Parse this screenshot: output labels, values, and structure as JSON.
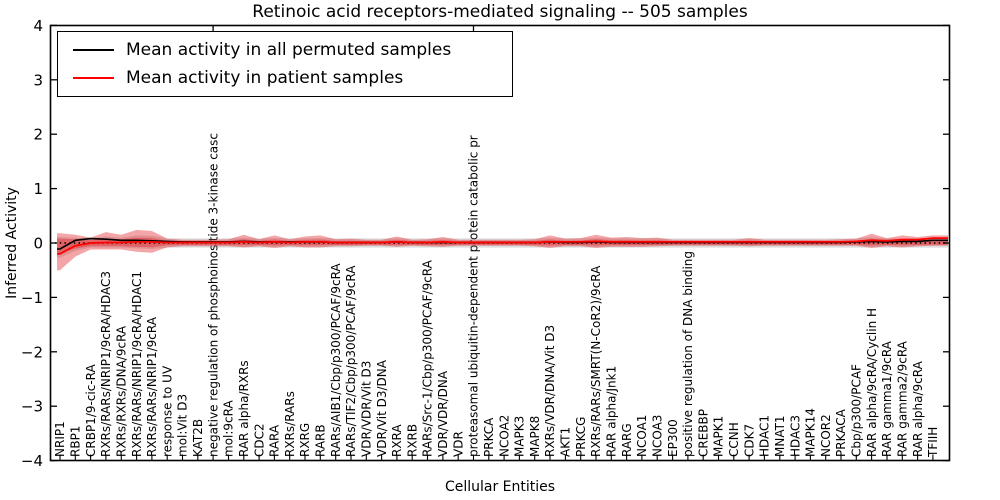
{
  "title": "Retinoic acid receptors-mediated signaling -- 505 samples",
  "legend": {
    "entries": [
      {
        "label": "Mean activity in all permuted samples",
        "color": "#000000"
      },
      {
        "label": "Mean activity in patient samples",
        "color": "#ff0000"
      }
    ],
    "position": "upper left"
  },
  "chart_data": {
    "type": "line",
    "title": "Retinoic acid receptors-mediated signaling -- 505 samples",
    "xlabel": "Cellular Entities",
    "ylabel": "Inferred Activity",
    "ylim": [
      -4,
      4
    ],
    "ytick_labels": [
      "4",
      "3",
      "2",
      "1",
      "0",
      "−1",
      "−2",
      "−3",
      "−4"
    ],
    "ytick_values": [
      4,
      3,
      2,
      1,
      0,
      -1,
      -2,
      -3,
      -4
    ],
    "grid": false,
    "x_tick_label_rotation": 90,
    "baseline": {
      "value": 0,
      "style": "dotted",
      "color": "#000000"
    },
    "band_color": "#e31e24",
    "shadow_band_color": "#828282",
    "layout_hints": {
      "top_tick_indices": [
        10,
        27
      ]
    },
    "categories": [
      "NRIP1",
      "RBP1",
      "CRBP1/9-cic-RA",
      "RXRs/RARs/NRIP1/9cRA/HDAC3",
      "RXRs/RXRs/DNA/9cRA",
      "RXRs/RARs/NRIP1/9cRA/HDAC1",
      "RXRs/RARs/NRIP1/9cRA",
      "response to UV",
      "mol:Vit D3",
      "KAT2B",
      "negative regulation of phosphoinositide 3-kinase casc",
      "mol:9cRA",
      "RAR alpha/RXRs",
      "CDC2",
      "RARA",
      "RXRs/RARs",
      "RXRG",
      "RARB",
      "RARs/AIB1/Cbp/p300/PCAF/9cRA",
      "RARs/TIF2/Cbp/p300/PCAF/9cRA",
      "VDR/VDR/Vit D3",
      "VDR/Vit D3/DNA",
      "RXRA",
      "RXRB",
      "RARs/Src-1/Cbp/p300/PCAF/9cRA",
      "VDR/VDR/DNA",
      "VDR",
      "proteasomal ubiquitin-dependent protein catabolic pr",
      "PRKCA",
      "NCOA2",
      "MAPK3",
      "MAPK8",
      "RXRs/VDR/DNA/Vit D3",
      "AKT1",
      "PRKCG",
      "RXRs/RARs/SMRT(N-CoR2)/9cRA",
      "RAR alpha/Jnk1",
      "RARG",
      "NCOA1",
      "NCOA3",
      "EP300",
      "positive regulation of DNA binding",
      "CREBBP",
      "MAPK1",
      "CCNH",
      "CDK7",
      "HDAC1",
      "MNAT1",
      "HDAC3",
      "MAPK14",
      "NCOR2",
      "PRKACA",
      "Cbp/p300/PCAF",
      "RAR alpha/9cRA/Cyclin H",
      "RAR gamma1/9cRA",
      "RAR gamma2/9cRA",
      "RAR alpha/9cRA",
      "TFIIH"
    ],
    "series": [
      {
        "name": "Mean activity in all permuted samples",
        "color": "#000000",
        "values": [
          -0.11,
          0.05,
          0.08,
          0.07,
          0.05,
          0.05,
          0.04,
          0.03,
          0.02,
          0.02,
          0.02,
          0.02,
          0.03,
          0.02,
          0.02,
          0.02,
          0.02,
          0.02,
          0.01,
          0.01,
          0.01,
          0.01,
          0.02,
          0.01,
          0.01,
          0.01,
          0.01,
          0.01,
          0.01,
          0.01,
          0.01,
          0.01,
          0.02,
          0.01,
          0.01,
          0.02,
          0.01,
          0.01,
          0.01,
          0.01,
          0.01,
          0.01,
          0.01,
          0.01,
          0.01,
          0.01,
          0.01,
          0.01,
          0.01,
          0.01,
          0.01,
          0.01,
          0.02,
          0.03,
          0.02,
          0.03,
          0.03,
          0.05
        ]
      },
      {
        "name": "Mean activity in patient samples",
        "color": "#ff0000",
        "values": [
          -0.2,
          -0.05,
          0.0,
          0.01,
          0.01,
          0.02,
          0.02,
          0.01,
          0.01,
          0.01,
          0.01,
          0.01,
          0.02,
          0.01,
          0.02,
          0.01,
          0.02,
          0.02,
          0.01,
          0.01,
          0.01,
          0.01,
          0.02,
          0.01,
          0.01,
          0.02,
          0.01,
          0.01,
          0.01,
          0.01,
          0.01,
          0.01,
          0.02,
          0.02,
          0.02,
          0.03,
          0.02,
          0.02,
          0.02,
          0.02,
          0.02,
          0.02,
          0.02,
          0.02,
          0.02,
          0.02,
          0.02,
          0.02,
          0.02,
          0.02,
          0.02,
          0.02,
          0.03,
          0.05,
          0.04,
          0.06,
          0.06,
          0.09
        ]
      }
    ],
    "band": {
      "name": "patient sample activity spread",
      "upper": [
        0.18,
        0.15,
        0.1,
        0.2,
        0.15,
        0.24,
        0.22,
        0.08,
        0.06,
        0.06,
        0.06,
        0.07,
        0.15,
        0.07,
        0.14,
        0.07,
        0.12,
        0.14,
        0.07,
        0.08,
        0.06,
        0.06,
        0.12,
        0.06,
        0.07,
        0.11,
        0.06,
        0.06,
        0.06,
        0.06,
        0.06,
        0.07,
        0.14,
        0.08,
        0.09,
        0.15,
        0.1,
        0.11,
        0.09,
        0.1,
        0.06,
        0.06,
        0.06,
        0.06,
        0.06,
        0.09,
        0.06,
        0.06,
        0.06,
        0.06,
        0.06,
        0.07,
        0.08,
        0.17,
        0.09,
        0.14,
        0.11,
        0.14
      ],
      "lower": [
        -0.5,
        -0.25,
        -0.12,
        -0.12,
        -0.12,
        -0.16,
        -0.18,
        -0.08,
        -0.06,
        -0.06,
        -0.06,
        -0.06,
        -0.08,
        -0.06,
        -0.09,
        -0.06,
        -0.08,
        -0.08,
        -0.06,
        -0.06,
        -0.05,
        -0.05,
        -0.07,
        -0.05,
        -0.06,
        -0.07,
        -0.05,
        -0.05,
        -0.05,
        -0.05,
        -0.05,
        -0.06,
        -0.09,
        -0.06,
        -0.06,
        -0.09,
        -0.07,
        -0.07,
        -0.07,
        -0.06,
        -0.05,
        -0.05,
        -0.05,
        -0.05,
        -0.05,
        -0.06,
        -0.05,
        -0.05,
        -0.05,
        -0.05,
        -0.05,
        -0.05,
        -0.05,
        -0.09,
        -0.06,
        -0.08,
        -0.06,
        -0.05
      ]
    }
  }
}
